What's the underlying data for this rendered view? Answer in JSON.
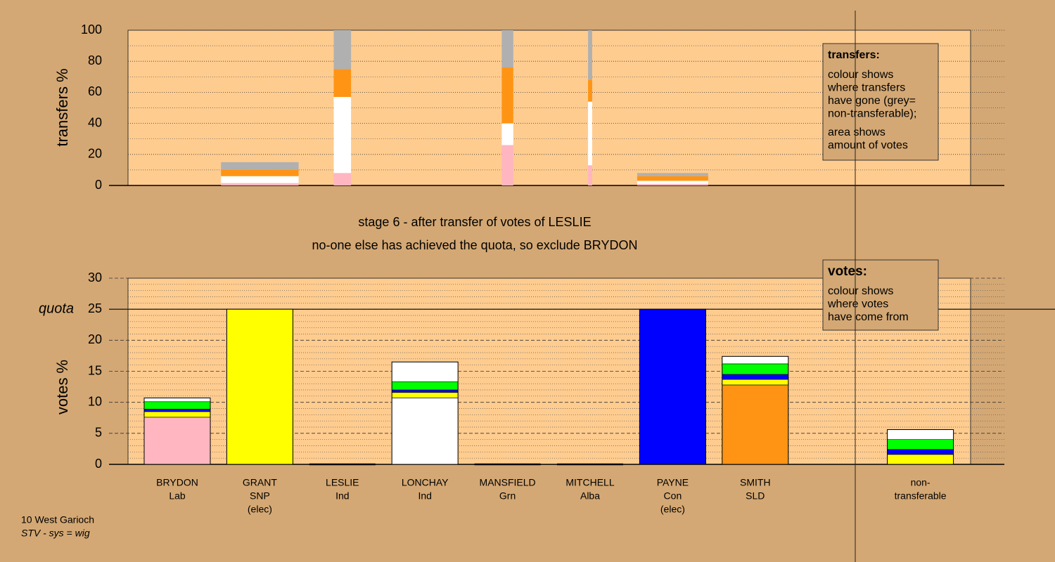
{
  "chart_data": [
    {
      "type": "transfer-bar",
      "ylabel": "transfers %",
      "ylim": [
        0,
        100
      ],
      "yticks": [
        0,
        20,
        40,
        60,
        80,
        100
      ],
      "grid": true,
      "minor_divisions": 2,
      "stacks": [
        null,
        {
          "weight": 0.94,
          "segments": [
            {
              "color": "#ffb6c1",
              "value": 1.5
            },
            {
              "color": "#ffffff",
              "value": 4.5
            },
            {
              "color": "#ff9414",
              "value": 4
            },
            {
              "color": "#b0b0b0",
              "value": 5
            }
          ]
        },
        {
          "weight": 0.21,
          "segments": [
            {
              "color": "#ffb6c1",
              "value": 8
            },
            {
              "color": "#ffffff",
              "value": 49
            },
            {
              "color": "#ff9414",
              "value": 18
            },
            {
              "color": "#b0b0b0",
              "value": 25
            }
          ]
        },
        null,
        {
          "weight": 0.14,
          "segments": [
            {
              "color": "#ffb6c1",
              "value": 26
            },
            {
              "color": "#ffffff",
              "value": 14
            },
            {
              "color": "#ff9414",
              "value": 36
            },
            {
              "color": "#b0b0b0",
              "value": 24
            }
          ]
        },
        {
          "weight": 0.05,
          "segments": [
            {
              "color": "#ffb6c1",
              "value": 13
            },
            {
              "color": "#ffffff",
              "value": 41
            },
            {
              "color": "#ff9414",
              "value": 14
            },
            {
              "color": "#b0b0b0",
              "value": 32
            }
          ]
        },
        {
          "weight": 0.86,
          "segments": [
            {
              "color": "#ffb6c1",
              "value": 1
            },
            {
              "color": "#ffffff",
              "value": 2
            },
            {
              "color": "#ff9414",
              "value": 3
            },
            {
              "color": "#b0b0b0",
              "value": 2
            }
          ]
        },
        null,
        null
      ],
      "legend": {
        "title": "transfers:",
        "lines": [
          "colour shows",
          "where transfers",
          "have gone (grey=",
          "non-transferable);",
          "area shows",
          "amount of votes"
        ]
      }
    },
    {
      "type": "stacked-bar",
      "ylabel": "votes %",
      "ylim": [
        0,
        30
      ],
      "yticks": [
        0,
        5,
        10,
        15,
        20,
        25,
        30
      ],
      "grid": true,
      "minor_divisions": 5,
      "quota": {
        "value": 25,
        "label": "quota"
      },
      "categories": [
        [
          "BRYDON",
          "Lab"
        ],
        [
          "GRANT",
          "SNP",
          "(elec)"
        ],
        [
          "LESLIE",
          "Ind"
        ],
        [
          "LONCHAY",
          "Ind"
        ],
        [
          "MANSFIELD",
          "Grn"
        ],
        [
          "MITCHELL",
          "Alba"
        ],
        [
          "PAYNE",
          "Con",
          "(elec)"
        ],
        [
          "SMITH",
          "SLD"
        ],
        [
          "non-",
          "transferable"
        ]
      ],
      "stacks": [
        [
          {
            "color": "#ffb6c1",
            "value": 7.6
          },
          {
            "color": "#ffff00",
            "value": 0.9
          },
          {
            "color": "#0000ff",
            "value": 0.4
          },
          {
            "color": "#00ff00",
            "value": 1.2
          },
          {
            "color": "#ffffff",
            "value": 0.6
          }
        ],
        [
          {
            "color": "#ffff00",
            "value": 25
          }
        ],
        [],
        [
          {
            "color": "#ffffff",
            "value": 10.7
          },
          {
            "color": "#ffff00",
            "value": 0.9
          },
          {
            "color": "#0000ff",
            "value": 0.4
          },
          {
            "color": "#00ff00",
            "value": 1.3
          },
          {
            "color": "#ffffff",
            "value": 3.2
          }
        ],
        [],
        [],
        [
          {
            "color": "#0000ff",
            "value": 25
          }
        ],
        [
          {
            "color": "#ff9414",
            "value": 12.8
          },
          {
            "color": "#ffff00",
            "value": 0.9
          },
          {
            "color": "#0000ff",
            "value": 0.8
          },
          {
            "color": "#00ff00",
            "value": 1.7
          },
          {
            "color": "#ffffff",
            "value": 1.2
          }
        ],
        [
          {
            "color": "#ffff00",
            "value": 1.6
          },
          {
            "color": "#0000ff",
            "value": 0.8
          },
          {
            "color": "#00ff00",
            "value": 1.6
          },
          {
            "color": "#ffffff",
            "value": 1.6
          }
        ]
      ],
      "legend": {
        "title": "votes:",
        "lines": [
          "colour shows",
          "where votes",
          "have come from"
        ]
      }
    }
  ],
  "stage": [
    "stage 6 - after transfer of votes of LESLIE",
    "no-one else has achieved the quota, so exclude BRYDON"
  ],
  "footer": {
    "area": "10 West Garioch",
    "system": "STV - sys = wig"
  }
}
